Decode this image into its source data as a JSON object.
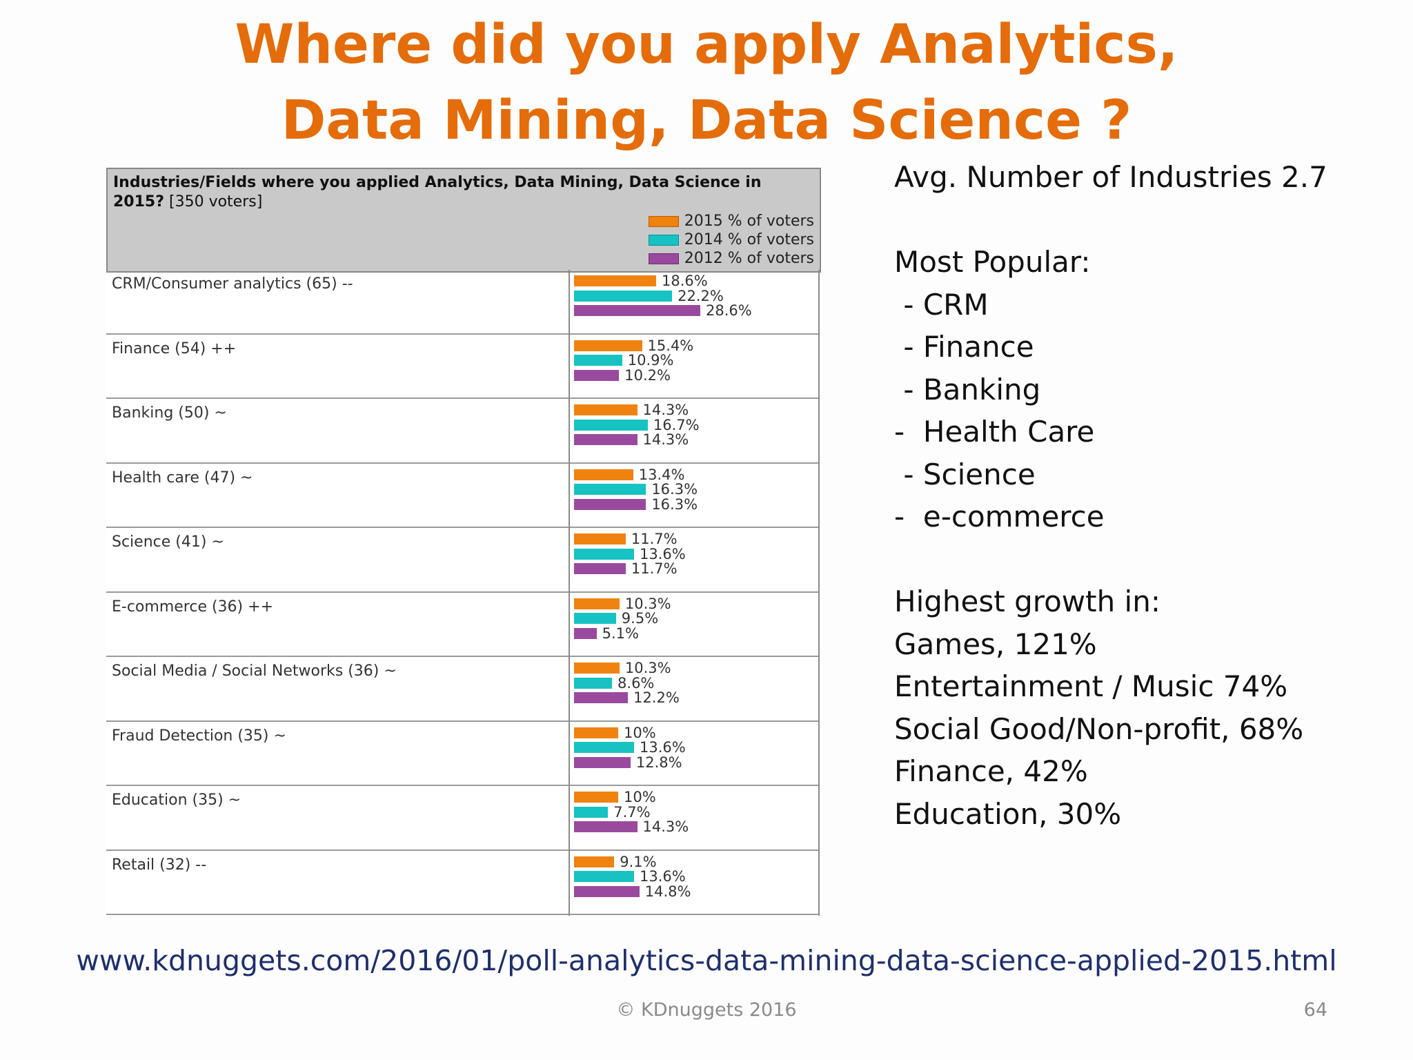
{
  "slide": {
    "title_line1": "Where did you apply Analytics,",
    "title_line2": "Data Mining, Data Science ?",
    "url": "www.kdnuggets.com/2016/01/poll-analytics-data-mining-data-science-applied-2015.html",
    "copyright": "© KDnuggets 2016",
    "page_number": "64"
  },
  "side": {
    "avg": "Avg. Number of Industries 2.7",
    "popular_heading": "Most Popular:",
    "popular": [
      " - CRM",
      " - Finance",
      " - Banking",
      "-  Health Care",
      " - Science",
      "-  e-commerce"
    ],
    "growth_heading": "Highest growth in:",
    "growth": [
      "Games, 121%",
      "Entertainment / Music 74%",
      "Social Good/Non-profit, 68%",
      "Finance, 42%",
      "Education, 30%"
    ]
  },
  "colors": {
    "y2015": "#f0820f",
    "y2014": "#17c2c2",
    "y2012": "#9a4a9e"
  },
  "chart_data": {
    "type": "bar",
    "title_bold": "Industries/Fields where you applied Analytics, Data Mining, Data Science in 2015?",
    "title_note": "[350 voters]",
    "categories": [
      "CRM/Consumer analytics (65) --",
      "Finance (54) ++",
      "Banking (50) ~",
      "Health care (47) ~",
      "Science (41) ~",
      "E-commerce (36) ++",
      "Social Media / Social Networks (36) ~",
      "Fraud Detection (35) ~",
      "Education (35) ~",
      "Retail (32) --"
    ],
    "series": [
      {
        "name": "2015 % of voters",
        "values": [
          18.6,
          15.4,
          14.3,
          13.4,
          11.7,
          10.3,
          10.3,
          10,
          10,
          9.1
        ],
        "labels": [
          "18.6%",
          "15.4%",
          "14.3%",
          "13.4%",
          "11.7%",
          "10.3%",
          "10.3%",
          "10%",
          "10%",
          "9.1%"
        ]
      },
      {
        "name": "2014 % of voters",
        "values": [
          22.2,
          10.9,
          16.7,
          16.3,
          13.6,
          9.5,
          8.6,
          13.6,
          7.7,
          13.6
        ],
        "labels": [
          "22.2%",
          "10.9%",
          "16.7%",
          "16.3%",
          "13.6%",
          "9.5%",
          "8.6%",
          "13.6%",
          "7.7%",
          "13.6%"
        ]
      },
      {
        "name": "2012 % of voters",
        "values": [
          28.6,
          10.2,
          14.3,
          16.3,
          11.7,
          5.1,
          12.2,
          12.8,
          14.3,
          14.8
        ],
        "labels": [
          "28.6%",
          "10.2%",
          "14.3%",
          "16.3%",
          "11.7%",
          "5.1%",
          "12.2%",
          "12.8%",
          "14.3%",
          "14.8%"
        ]
      }
    ],
    "legend_position": "top-right"
  }
}
